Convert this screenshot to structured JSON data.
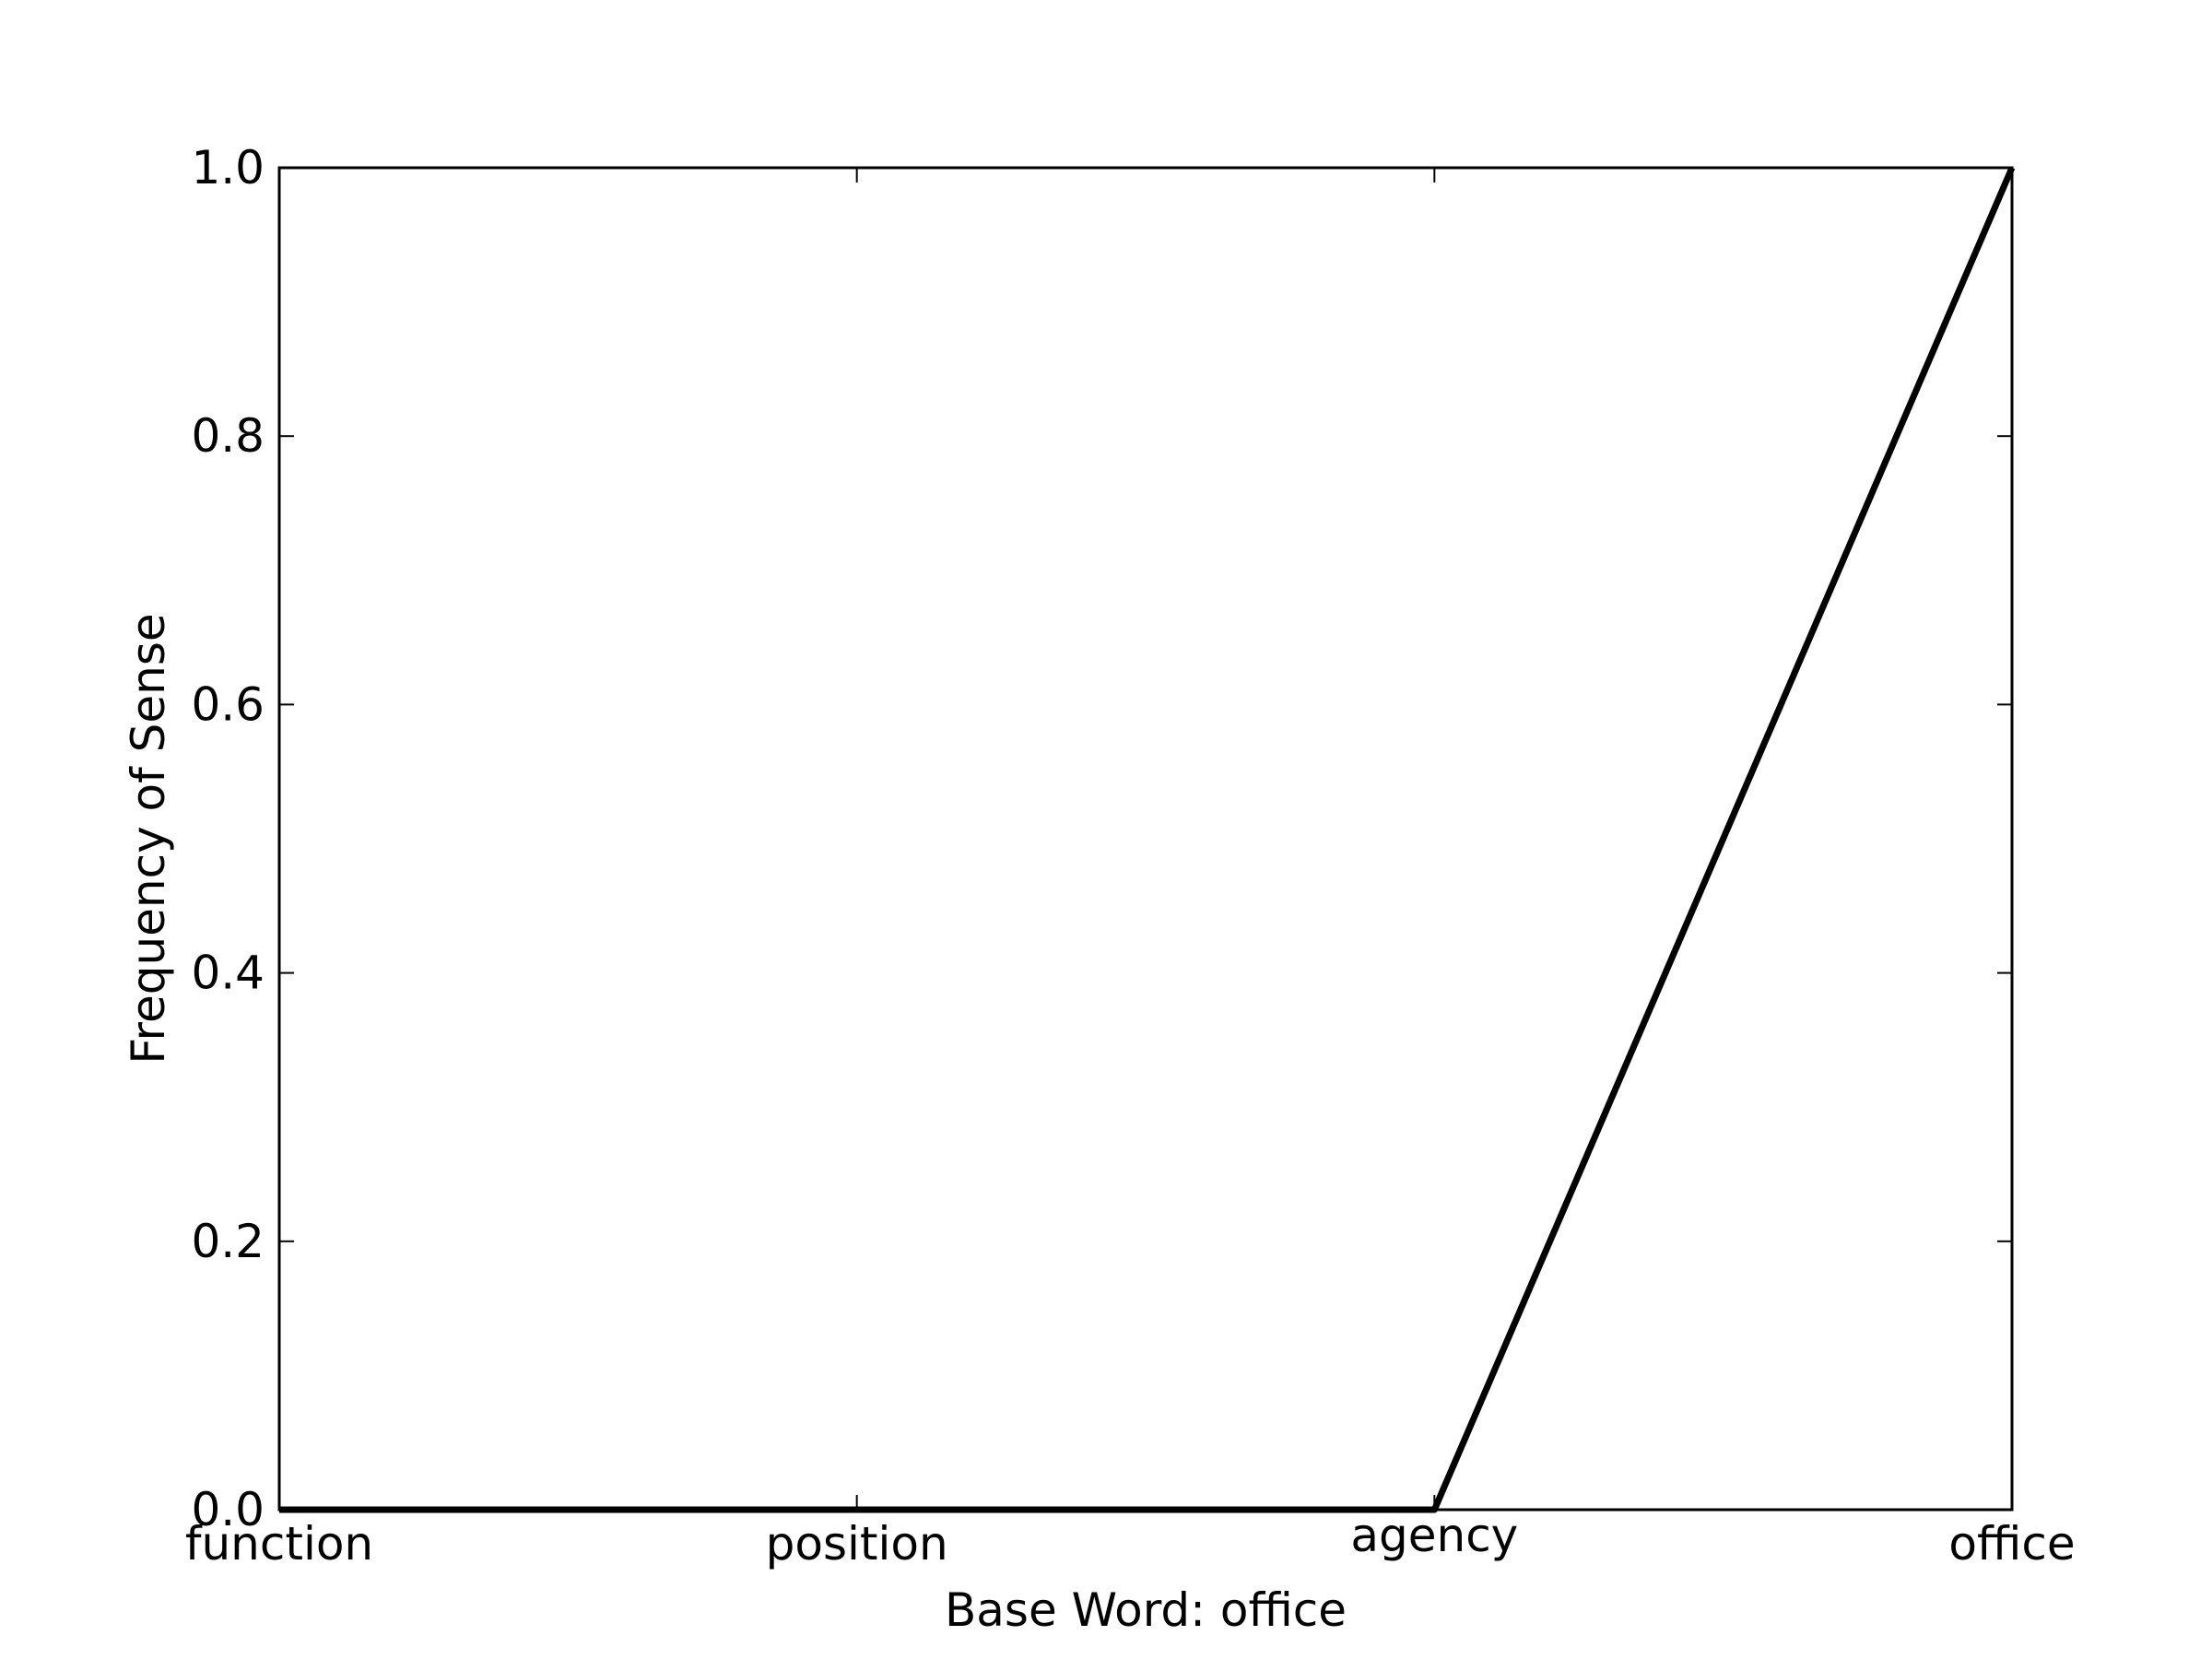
{
  "chart_data": {
    "type": "line",
    "title": "",
    "xlabel": "Base Word: office",
    "ylabel": "Frequency of Sense",
    "categories": [
      "function",
      "position",
      "agency",
      "office"
    ],
    "series": [
      {
        "values": [
          0.0,
          0.0,
          0.0,
          1.0
        ],
        "color": "#000000"
      }
    ],
    "ylim": [
      0.0,
      1.0
    ],
    "yticks": [
      0.0,
      0.2,
      0.4,
      0.6,
      0.8,
      1.0
    ],
    "ytick_labels": [
      "0.0",
      "0.2",
      "0.4",
      "0.6",
      "0.8",
      "1.0"
    ],
    "grid": false,
    "legend": "none"
  }
}
